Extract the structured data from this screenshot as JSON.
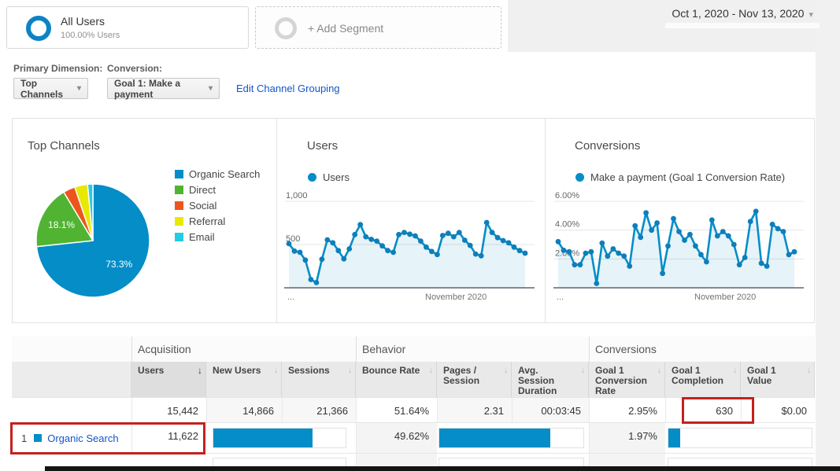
{
  "icons": {
    "sort_down": "↓",
    "caret_down": "▾",
    "legend_dot": "●"
  },
  "colors": {
    "accent": "#058dc7",
    "link": "#1155cc",
    "highlight_box": "#c4201f",
    "pie_palette": [
      "#058dc7",
      "#50b432",
      "#ed561b",
      "#e8e800",
      "#24cbe5"
    ]
  },
  "header": {
    "date_range": "Oct 1, 2020 - Nov 13, 2020",
    "segments": {
      "active_name": "All Users",
      "active_detail": "100.00% Users",
      "add_label": "+ Add Segment"
    }
  },
  "controls": {
    "primary_dimension_label": "Primary Dimension:",
    "primary_dimension_value": "Top Channels",
    "conversion_label": "Conversion:",
    "conversion_value": "Goal 1: Make a payment",
    "edit_channel_grouping": "Edit Channel Grouping"
  },
  "chart_data": [
    {
      "type": "pie",
      "title": "Top Channels",
      "labels": [
        "Organic Search",
        "Direct",
        "Social",
        "Referral",
        "Email"
      ],
      "values": [
        73.3,
        18.1,
        3.4,
        3.7,
        1.5
      ],
      "visible_slice_labels": [
        "73.3%",
        "18.1%"
      ],
      "legend_position": "right"
    },
    {
      "type": "line",
      "title": "Users",
      "legend": "Users",
      "x_axis_label": "November 2020",
      "x_axis_left_label": "...",
      "x_range": "Oct 1, 2020 - Nov 13, 2020",
      "ylim": [
        0,
        1090
      ],
      "grid": true,
      "y_ticks": [
        {
          "label": "1,000",
          "value": 1000
        },
        {
          "label": "500",
          "value": 500
        }
      ],
      "values": [
        510,
        425,
        410,
        320,
        95,
        60,
        330,
        555,
        520,
        430,
        335,
        450,
        615,
        730,
        590,
        560,
        540,
        485,
        430,
        410,
        615,
        640,
        620,
        600,
        540,
        470,
        420,
        385,
        605,
        630,
        590,
        640,
        550,
        490,
        390,
        370,
        755,
        640,
        580,
        545,
        520,
        470,
        430,
        400
      ]
    },
    {
      "type": "line",
      "title": "Conversions",
      "legend": "Make a payment (Goal 1 Conversion Rate)",
      "x_axis_label": "November 2020",
      "x_axis_left_label": "...",
      "x_range": "Oct 1, 2020 - Nov 13, 2020",
      "ylim": [
        0,
        6.55
      ],
      "grid": true,
      "y_ticks": [
        {
          "label": "6.00%",
          "value": 6
        },
        {
          "label": "4.00%",
          "value": 4
        },
        {
          "label": "2.00%",
          "value": 2
        }
      ],
      "values": [
        3.2,
        2.6,
        2.5,
        1.6,
        1.6,
        2.4,
        2.5,
        0.3,
        3.1,
        2.2,
        2.7,
        2.4,
        2.2,
        1.5,
        4.3,
        3.5,
        5.2,
        4.0,
        4.5,
        1.0,
        2.9,
        4.8,
        3.9,
        3.3,
        3.7,
        2.9,
        2.3,
        1.8,
        4.7,
        3.6,
        3.9,
        3.6,
        3.0,
        1.6,
        2.1,
        4.6,
        5.3,
        1.7,
        1.5,
        4.4,
        4.1,
        3.9,
        2.3,
        2.5
      ]
    }
  ],
  "table": {
    "groups": [
      "Acquisition",
      "Behavior",
      "Conversions"
    ],
    "columns": {
      "users": "Users",
      "new_users": "New Users",
      "sessions": "Sessions",
      "bounce_rate": "Bounce Rate",
      "pages_session": "Pages / Session",
      "avg_duration": "Avg. Session Duration",
      "goal_conv_rate": "Goal 1 Conversion Rate",
      "goal_completion": "Goal 1 Completion",
      "goal_value": "Goal 1 Value"
    },
    "summary": {
      "users": "15,442",
      "new_users": "14,866",
      "sessions": "21,366",
      "bounce_rate": "51.64%",
      "pages_session": "2.31",
      "avg_duration": "00:03:45",
      "goal_conv_rate": "2.95%",
      "goal_completion": "630",
      "goal_value": "$0.00"
    },
    "rows": [
      {
        "rank": "1",
        "channel": "Organic Search",
        "users": "11,622",
        "bounce_rate": "49.62%",
        "goal_conv_rate": "1.97%",
        "bars": {
          "acquisition": 75,
          "behavior": 77,
          "conversions": 8.5
        }
      }
    ]
  }
}
